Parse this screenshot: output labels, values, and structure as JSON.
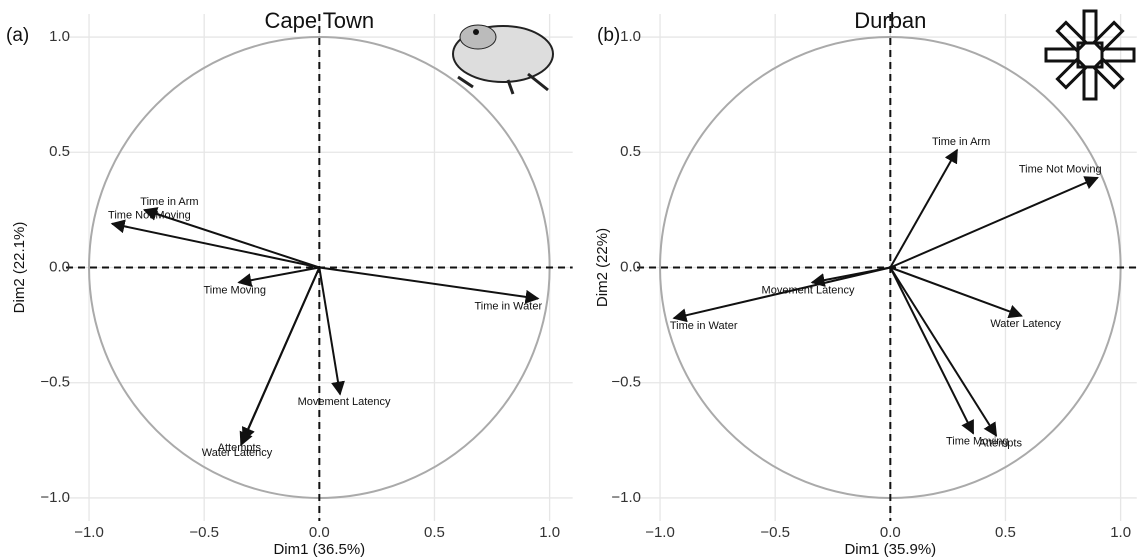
{
  "chart_data": [
    {
      "type": "biplot",
      "panel": "(a)",
      "title": "Cape Town",
      "xlabel": "Dim1 (36.5%)",
      "ylabel": "Dim2 (22.1%)",
      "variables": [
        "Time in Arm",
        "Time Not Moving",
        "Time Moving",
        "Time in Water",
        "Movement Latency",
        "Attempts",
        "Water Latency"
      ],
      "x": [
        -0.76,
        -0.9,
        -0.35,
        0.95,
        0.09,
        -0.33,
        -0.34
      ],
      "y": [
        0.25,
        0.19,
        -0.065,
        -0.135,
        -0.55,
        -0.75,
        -0.77
      ],
      "xlim": [
        -1.1,
        1.1
      ],
      "ylim": [
        -1.1,
        1.1
      ],
      "xticks": [
        {
          "value": -1,
          "label": "−1.0"
        },
        {
          "value": -0.5,
          "label": "−0.5"
        },
        {
          "value": 0,
          "label": "0.0"
        },
        {
          "value": 0.5,
          "label": "0.5"
        },
        {
          "value": 1,
          "label": "1.0"
        }
      ],
      "yticks": [
        {
          "value": -1,
          "label": "−1.0"
        },
        {
          "value": -0.5,
          "label": "−0.5"
        },
        {
          "value": 0,
          "label": "0.0"
        },
        {
          "value": 0.5,
          "label": "0.5"
        },
        {
          "value": 1,
          "label": "1.0"
        }
      ],
      "grid": true,
      "color": "#111111"
    },
    {
      "type": "biplot",
      "panel": "(b)",
      "title": "Durban",
      "xlabel": "Dim1 (35.9%)",
      "ylabel": "Dim2 (22%)",
      "variables": [
        "Time in Arm",
        "Time Not Moving",
        "Movement Latency",
        "Time in Water",
        "Water Latency",
        "Time Moving",
        "Attempts"
      ],
      "x": [
        0.29,
        0.9,
        -0.34,
        -0.94,
        0.57,
        0.36,
        0.46
      ],
      "y": [
        0.51,
        0.39,
        -0.065,
        -0.22,
        -0.21,
        -0.72,
        -0.73
      ],
      "xlim": [
        -1.1,
        1.07
      ],
      "ylim": [
        -1.1,
        1.1
      ],
      "xticks": [
        {
          "value": -1,
          "label": "−1.0"
        },
        {
          "value": -0.5,
          "label": "−0.5"
        },
        {
          "value": 0,
          "label": "0.0"
        },
        {
          "value": 0.5,
          "label": "0.5"
        },
        {
          "value": 1,
          "label": "1.0"
        }
      ],
      "yticks": [
        {
          "value": -1,
          "label": "−1.0"
        },
        {
          "value": -0.5,
          "label": "−0.5"
        },
        {
          "value": 0,
          "label": "0.0"
        },
        {
          "value": 0.5,
          "label": "0.5"
        },
        {
          "value": 1,
          "label": "1.0"
        }
      ],
      "grid": true,
      "color": "#111111"
    }
  ]
}
